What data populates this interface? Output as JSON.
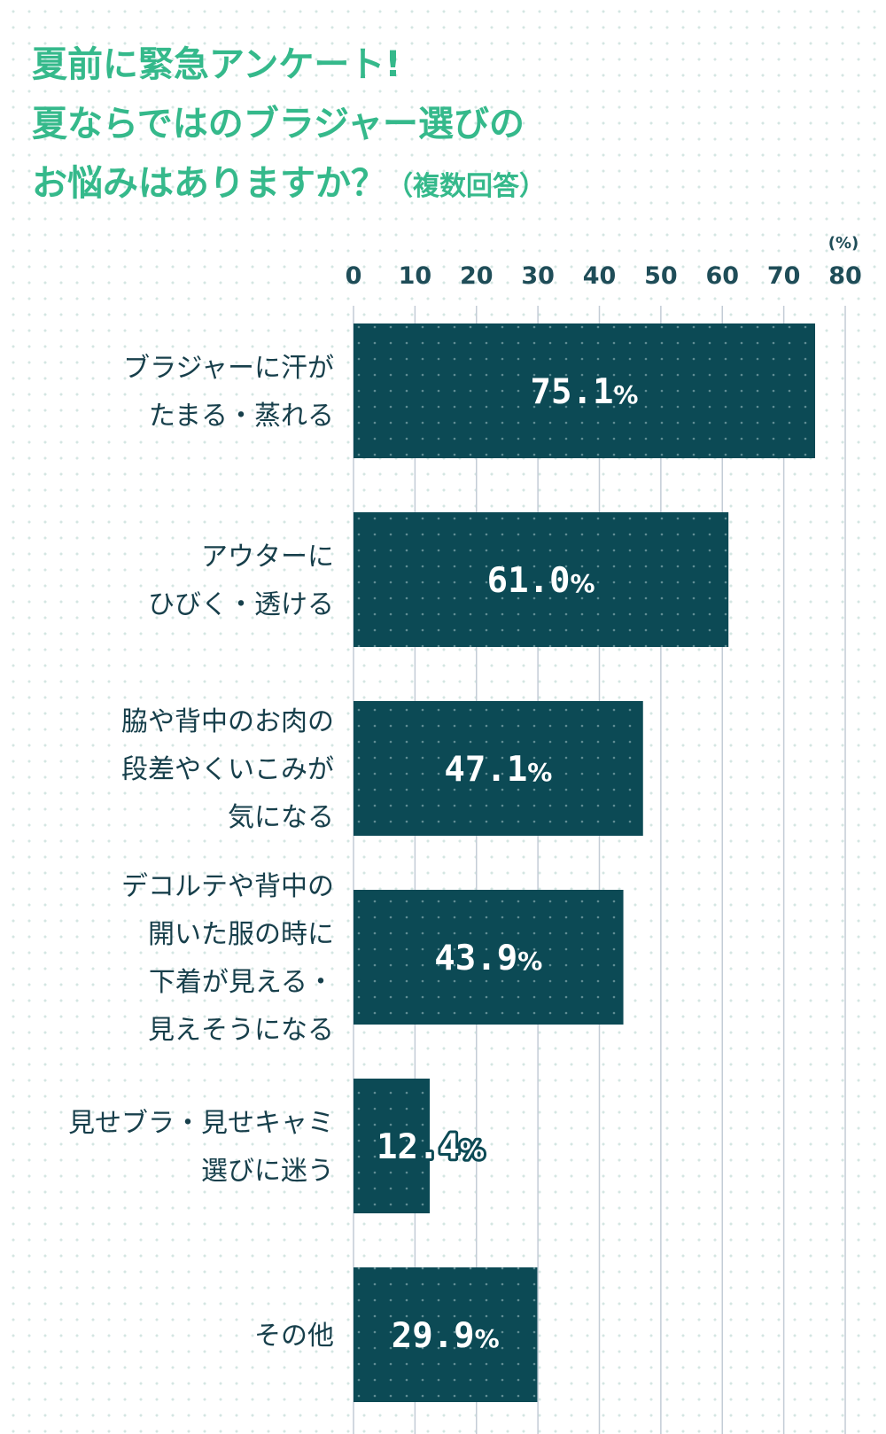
{
  "title": {
    "lines": [
      "夏前に緊急アンケート!",
      "夏ならではのブラジャー選びの",
      "お悩みはありますか？"
    ],
    "note": "（複数回答）"
  },
  "colors": {
    "title": "#35b98b",
    "bar": "#0c4a55",
    "text": "#173f4b",
    "grid": "#c3ccd6",
    "background_dots": "#d4e6e2"
  },
  "chart_data": {
    "type": "bar",
    "orientation": "horizontal",
    "unit_label": "(%)",
    "xlim": [
      0,
      80
    ],
    "ticks": [
      0,
      10,
      20,
      30,
      40,
      50,
      60,
      70,
      80
    ],
    "grid": true,
    "categories": [
      [
        "ブラジャーに汗が",
        "たまる・蒸れる"
      ],
      [
        "アウターに",
        "ひびく・透ける"
      ],
      [
        "脇や背中のお肉の",
        "段差やくいこみが",
        "気になる"
      ],
      [
        "デコルテや背中の",
        "開いた服の時に",
        "下着が見える・",
        "見えそうになる"
      ],
      [
        "見せブラ・見せキャミ",
        "選びに迷う"
      ],
      [
        "その他"
      ]
    ],
    "values": [
      75.1,
      61.0,
      47.1,
      43.9,
      12.4,
      29.9
    ],
    "value_labels": [
      "75.1",
      "61.0",
      "47.1",
      "43.9",
      "12.4",
      "29.9"
    ],
    "value_suffix": "%"
  }
}
